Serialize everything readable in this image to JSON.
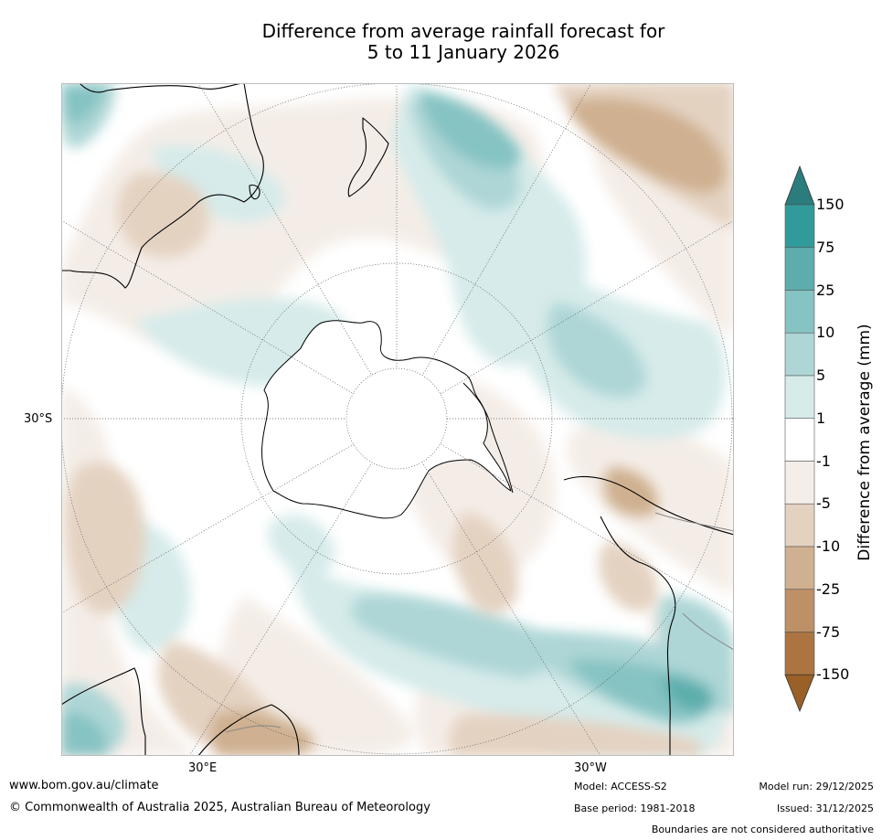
{
  "title": {
    "line1": "Difference from average rainfall forecast for",
    "line2": "5 to 11 January 2026"
  },
  "map": {
    "axis_labels": {
      "lat": "30°S",
      "lon_east": "30°E",
      "lon_west": "30°W"
    },
    "projection": "south-polar-stereographic"
  },
  "colorbar": {
    "title": "Difference from average (mm)",
    "ticks": [
      "150",
      "75",
      "25",
      "10",
      "5",
      "1",
      "-1",
      "-5",
      "-10",
      "-25",
      "-75",
      "-150"
    ],
    "colors": [
      "#9a6028",
      "#ab7440",
      "#bd9066",
      "#cfb090",
      "#e4d2c1",
      "#f5eee8",
      "#ffffff",
      "#d6ebea",
      "#aed6d6",
      "#86c3c3",
      "#5dadad",
      "#309b9a",
      "#2a7d7c"
    ]
  },
  "footer": {
    "url": "www.bom.gov.au/climate",
    "copyright": "© Commonwealth of Australia 2025, Australian Bureau of Meteorology",
    "model": "Model: ACCESS-S2",
    "base_period": "Base period: 1981-2018",
    "model_run": "Model run: 29/12/2025",
    "issued": "Issued: 31/12/2025",
    "disclaimer": "Boundaries are not considered authoritative"
  }
}
